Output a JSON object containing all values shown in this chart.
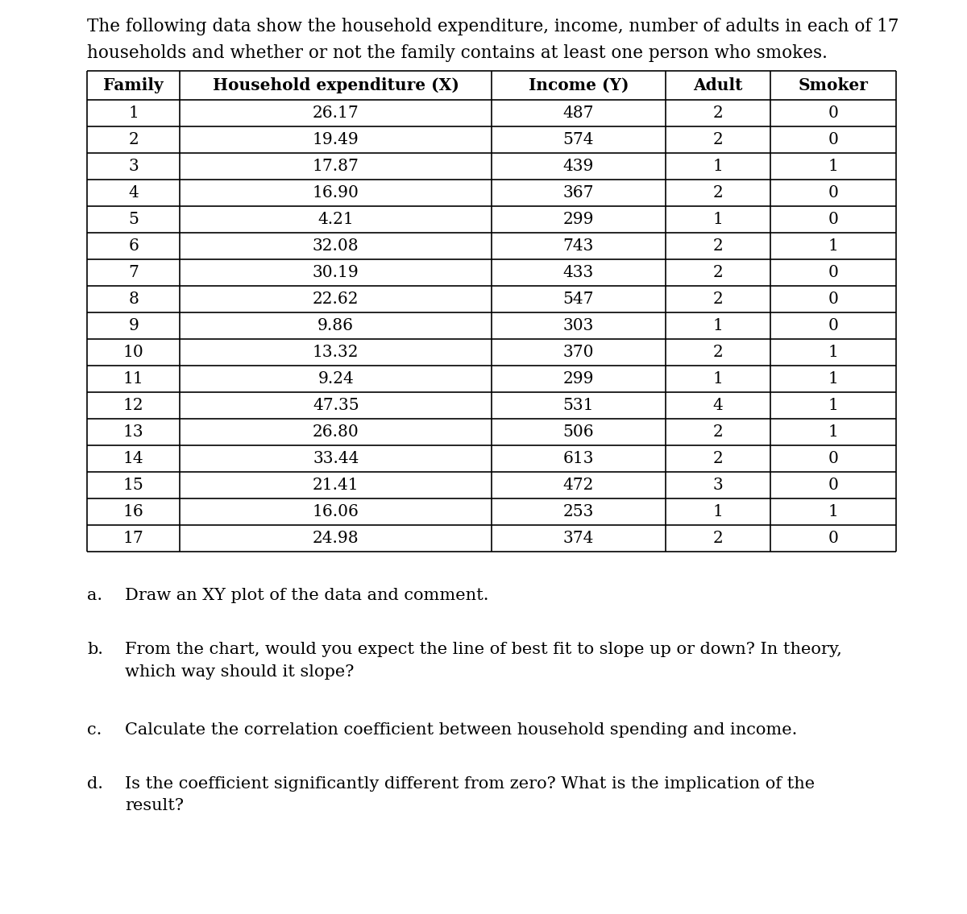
{
  "intro_text_line1": "The following data show the household expenditure, income, number of adults in each of 17",
  "intro_text_line2": "households and whether or not the family contains at least one person who smokes.",
  "col_headers": [
    "Family",
    "Household expenditure (X)",
    "Income (Y)",
    "Adult",
    "Smoker"
  ],
  "rows": [
    [
      "1",
      "26.17",
      "487",
      "2",
      "0"
    ],
    [
      "2",
      "19.49",
      "574",
      "2",
      "0"
    ],
    [
      "3",
      "17.87",
      "439",
      "1",
      "1"
    ],
    [
      "4",
      "16.90",
      "367",
      "2",
      "0"
    ],
    [
      "5",
      "4.21",
      "299",
      "1",
      "0"
    ],
    [
      "6",
      "32.08",
      "743",
      "2",
      "1"
    ],
    [
      "7",
      "30.19",
      "433",
      "2",
      "0"
    ],
    [
      "8",
      "22.62",
      "547",
      "2",
      "0"
    ],
    [
      "9",
      "9.86",
      "303",
      "1",
      "0"
    ],
    [
      "10",
      "13.32",
      "370",
      "2",
      "1"
    ],
    [
      "11",
      "9.24",
      "299",
      "1",
      "1"
    ],
    [
      "12",
      "47.35",
      "531",
      "4",
      "1"
    ],
    [
      "13",
      "26.80",
      "506",
      "2",
      "1"
    ],
    [
      "14",
      "33.44",
      "613",
      "2",
      "0"
    ],
    [
      "15",
      "21.41",
      "472",
      "3",
      "0"
    ],
    [
      "16",
      "16.06",
      "253",
      "1",
      "1"
    ],
    [
      "17",
      "24.98",
      "374",
      "2",
      "0"
    ]
  ],
  "questions": [
    {
      "label": "a.",
      "text": "Draw an XY plot of the data and comment."
    },
    {
      "label": "b.",
      "text": "From the chart, would you expect the line of best fit to slope up or down? In theory,\nwhich way should it slope?"
    },
    {
      "label": "c.",
      "text": "Calculate the correlation coefficient between household spending and income."
    },
    {
      "label": "d.",
      "text": "Is the coefficient significantly different from zero? What is the implication of the\nresult?"
    }
  ],
  "background_color": "#ffffff",
  "text_color": "#000000"
}
